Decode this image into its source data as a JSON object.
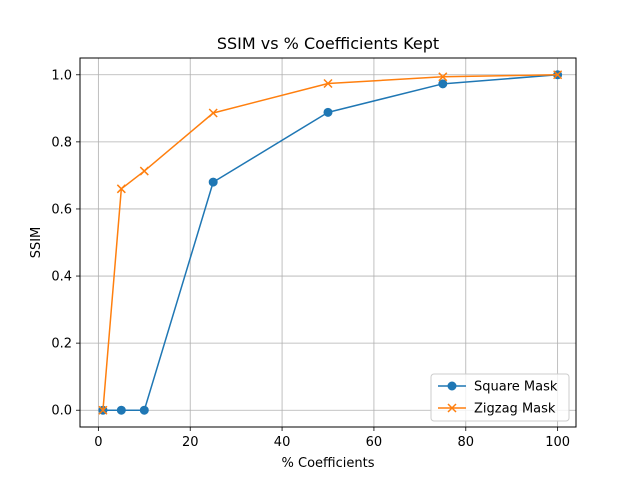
{
  "chart_data": {
    "type": "line",
    "title": "SSIM vs % Coefficients Kept",
    "xlabel": "% Coefficients",
    "ylabel": "SSIM",
    "xlim": [
      -4,
      104
    ],
    "ylim": [
      -0.05,
      1.05
    ],
    "xticks": [
      0,
      20,
      40,
      60,
      80,
      100
    ],
    "yticks": [
      0.0,
      0.2,
      0.4,
      0.6,
      0.8,
      1.0
    ],
    "xtick_labels": [
      "0",
      "20",
      "40",
      "60",
      "80",
      "100"
    ],
    "ytick_labels": [
      "0.0",
      "0.2",
      "0.4",
      "0.6",
      "0.8",
      "1.0"
    ],
    "grid": true,
    "legend_position": "bottom-right",
    "series": [
      {
        "name": "Square Mask",
        "color": "#1f77b4",
        "marker": "circle",
        "x": [
          1,
          5,
          10,
          25,
          50,
          75,
          100
        ],
        "y": [
          0.0,
          0.0,
          0.0,
          0.68,
          0.888,
          0.973,
          1.0
        ]
      },
      {
        "name": "Zigzag Mask",
        "color": "#ff7f0e",
        "marker": "x",
        "x": [
          1,
          5,
          10,
          25,
          50,
          75,
          100
        ],
        "y": [
          0.0,
          0.66,
          0.713,
          0.886,
          0.974,
          0.994,
          1.0
        ]
      }
    ]
  }
}
